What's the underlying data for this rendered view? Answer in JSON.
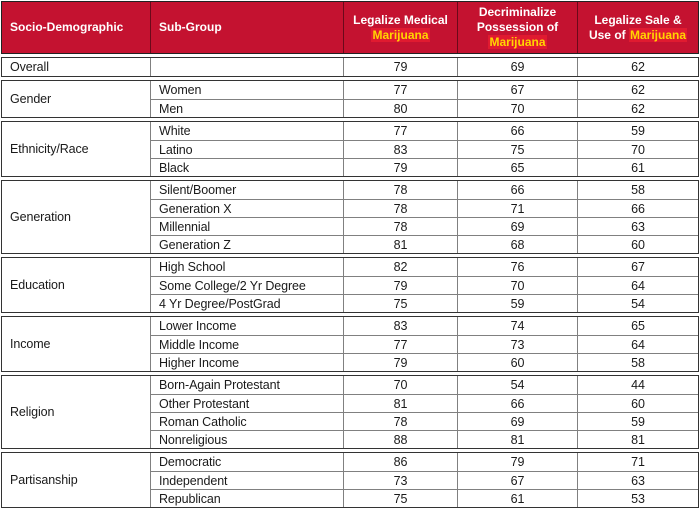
{
  "colors": {
    "header_bg": "#c41230",
    "header_text": "#ffffff",
    "marijuana_text": "#ffd500",
    "marijuana_highlight_bg": "#e01a30",
    "grid_line": "#808080",
    "section_border": "#333333",
    "body_text": "#1a1a1a"
  },
  "header": {
    "cells": [
      {
        "white": "Socio-Demographic"
      },
      {
        "white": "Sub-Group"
      },
      {
        "white": "Legalize Medical",
        "yellow": "Marijuana"
      },
      {
        "white": "Decriminalize Possession of",
        "yellow": "Marijuana"
      },
      {
        "white": "Legalize Sale & Use of",
        "yellow": "Marijuana"
      }
    ]
  },
  "chart_data": {
    "type": "table",
    "title": "Support for marijuana policies by socio-demographic group (%)",
    "columns": [
      "Socio-Demographic",
      "Sub-Group",
      "Legalize Medical Marijuana",
      "Decriminalize Possession of Marijuana",
      "Legalize Sale & Use of Marijuana"
    ],
    "sections": [
      {
        "category": "Overall",
        "rows": [
          {
            "subgroup": "",
            "values": [
              79,
              69,
              62
            ]
          }
        ]
      },
      {
        "category": "Gender",
        "rows": [
          {
            "subgroup": "Women",
            "values": [
              77,
              67,
              62
            ]
          },
          {
            "subgroup": "Men",
            "values": [
              80,
              70,
              62
            ]
          }
        ]
      },
      {
        "category": "Ethnicity/Race",
        "rows": [
          {
            "subgroup": "White",
            "values": [
              77,
              66,
              59
            ]
          },
          {
            "subgroup": "Latino",
            "values": [
              83,
              75,
              70
            ]
          },
          {
            "subgroup": "Black",
            "values": [
              79,
              65,
              61
            ]
          }
        ]
      },
      {
        "category": "Generation",
        "rows": [
          {
            "subgroup": "Silent/Boomer",
            "values": [
              78,
              66,
              58
            ]
          },
          {
            "subgroup": "Generation X",
            "values": [
              78,
              71,
              66
            ]
          },
          {
            "subgroup": "Millennial",
            "values": [
              78,
              69,
              63
            ]
          },
          {
            "subgroup": "Generation Z",
            "values": [
              81,
              68,
              60
            ]
          }
        ]
      },
      {
        "category": "Education",
        "rows": [
          {
            "subgroup": "High School",
            "values": [
              82,
              76,
              67
            ]
          },
          {
            "subgroup": "Some College/2 Yr Degree",
            "values": [
              79,
              70,
              64
            ]
          },
          {
            "subgroup": "4 Yr Degree/PostGrad",
            "values": [
              75,
              59,
              54
            ]
          }
        ]
      },
      {
        "category": "Income",
        "rows": [
          {
            "subgroup": "Lower Income",
            "values": [
              83,
              74,
              65
            ]
          },
          {
            "subgroup": "Middle Income",
            "values": [
              77,
              73,
              64
            ]
          },
          {
            "subgroup": "Higher Income",
            "values": [
              79,
              60,
              58
            ]
          }
        ]
      },
      {
        "category": "Religion",
        "rows": [
          {
            "subgroup": "Born-Again Protestant",
            "values": [
              70,
              54,
              44
            ]
          },
          {
            "subgroup": "Other Protestant",
            "values": [
              81,
              66,
              60
            ]
          },
          {
            "subgroup": "Roman Catholic",
            "values": [
              78,
              69,
              59
            ]
          },
          {
            "subgroup": "Nonreligious",
            "values": [
              88,
              81,
              81
            ]
          }
        ]
      },
      {
        "category": "Partisanship",
        "rows": [
          {
            "subgroup": "Democratic",
            "values": [
              86,
              79,
              71
            ]
          },
          {
            "subgroup": "Independent",
            "values": [
              73,
              67,
              63
            ]
          },
          {
            "subgroup": "Republican",
            "values": [
              75,
              61,
              53
            ]
          }
        ]
      }
    ]
  }
}
